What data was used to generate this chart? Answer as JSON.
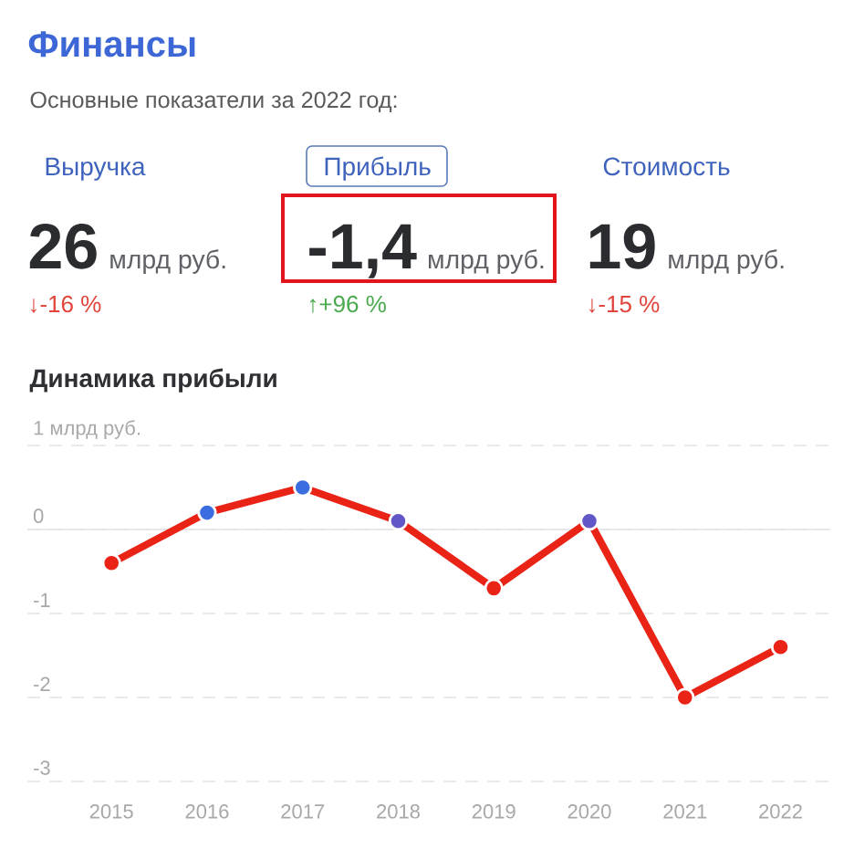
{
  "chart_data": [
    {
      "type": "other",
      "title": "Финансы",
      "subtitle": "Основные показатели за 2022 год:",
      "categories": [
        "Выручка",
        "Прибыль",
        "Стоимость"
      ],
      "annotations": [
        "26",
        "млрд руб.",
        "↓-16 %",
        "-1,4",
        "млрд руб.",
        "↑+96 %",
        "19",
        "млрд руб.",
        "↓-15 %"
      ],
      "colors": [
        "#e0443a",
        "#4aaa4f",
        "#e0443a"
      ]
    },
    {
      "type": "line",
      "title": "Динамика прибыли",
      "categories": [
        "2015",
        "2016",
        "2017",
        "2018",
        "2019",
        "2020",
        "2021",
        "2022"
      ],
      "series": [
        {
          "color": "#ea2317",
          "values": [
            -0.4,
            0.2,
            0.5,
            0.1,
            -0.7,
            0.1,
            -2.0,
            -1.4
          ],
          "colors": [
            "#ea2317",
            "#3b6de0",
            "#3b6de0",
            "#6257c6",
            "#ea2317",
            "#6257c6",
            "#ea2317",
            "#ea2317"
          ]
        }
      ],
      "ylim": [
        -3,
        1
      ],
      "yticks": [
        {
          "value": 1,
          "label": "1 млрд руб."
        },
        0,
        -1,
        -2,
        -3
      ],
      "grid": "y",
      "marker": "circle"
    }
  ]
}
